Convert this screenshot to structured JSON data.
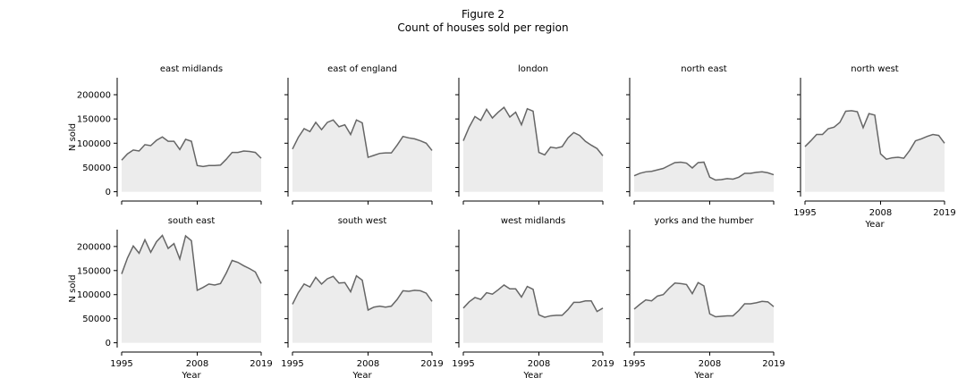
{
  "figure": {
    "title": "Figure 2",
    "subtitle": "Count of houses sold per region"
  },
  "chart_data": {
    "type": "area",
    "xlabel": "Year",
    "ylabel": "N sold",
    "xlim": [
      1995,
      2019
    ],
    "ylim": [
      -10000,
      235000
    ],
    "xticks": [
      1995,
      2008,
      2019
    ],
    "yticks": [
      0,
      50000,
      100000,
      150000,
      200000
    ],
    "grid": false,
    "line_color": "#666666",
    "fill_color": "#ececec",
    "x": [
      1995,
      1996,
      1997,
      1998,
      1999,
      2000,
      2001,
      2002,
      2003,
      2004,
      2005,
      2006,
      2007,
      2008,
      2009,
      2010,
      2011,
      2012,
      2013,
      2014,
      2015,
      2016,
      2017,
      2018,
      2019
    ],
    "panels": [
      {
        "name": "east midlands",
        "values": [
          65000,
          78000,
          86000,
          84000,
          97000,
          95000,
          106000,
          113000,
          104000,
          104000,
          87000,
          108000,
          104000,
          54000,
          52000,
          54000,
          54000,
          55000,
          67000,
          81000,
          81000,
          84000,
          83000,
          81000,
          69000
        ]
      },
      {
        "name": "east of england",
        "values": [
          88000,
          112000,
          130000,
          124000,
          143000,
          128000,
          143000,
          148000,
          134000,
          138000,
          118000,
          148000,
          142000,
          71000,
          75000,
          79000,
          80000,
          80000,
          96000,
          114000,
          111000,
          109000,
          105000,
          100000,
          85000
        ]
      },
      {
        "name": "london",
        "values": [
          105000,
          133000,
          155000,
          147000,
          170000,
          152000,
          164000,
          174000,
          154000,
          164000,
          138000,
          171000,
          166000,
          81000,
          76000,
          92000,
          90000,
          93000,
          111000,
          122000,
          116000,
          104000,
          96000,
          89000,
          74000
        ]
      },
      {
        "name": "north east",
        "values": [
          33000,
          38000,
          41000,
          42000,
          45000,
          48000,
          54000,
          60000,
          61000,
          59000,
          49000,
          60000,
          61000,
          30000,
          24000,
          25000,
          27000,
          26000,
          30000,
          38000,
          38000,
          40000,
          41000,
          39000,
          35000
        ]
      },
      {
        "name": "north west",
        "values": [
          93000,
          105000,
          118000,
          118000,
          130000,
          133000,
          143000,
          166000,
          167000,
          165000,
          132000,
          161000,
          158000,
          78000,
          67000,
          70000,
          71000,
          69000,
          85000,
          105000,
          109000,
          114000,
          118000,
          116000,
          100000
        ]
      },
      {
        "name": "south east",
        "values": [
          143000,
          176000,
          201000,
          186000,
          214000,
          188000,
          210000,
          223000,
          196000,
          206000,
          174000,
          222000,
          212000,
          109000,
          115000,
          122000,
          120000,
          123000,
          145000,
          171000,
          167000,
          160000,
          154000,
          147000,
          123000
        ]
      },
      {
        "name": "south west",
        "values": [
          80000,
          104000,
          122000,
          116000,
          136000,
          122000,
          133000,
          138000,
          124000,
          125000,
          106000,
          139000,
          130000,
          68000,
          74000,
          76000,
          74000,
          76000,
          90000,
          108000,
          107000,
          109000,
          108000,
          103000,
          86000
        ]
      },
      {
        "name": "west midlands",
        "values": [
          72000,
          85000,
          94000,
          90000,
          104000,
          101000,
          110000,
          120000,
          112000,
          112000,
          95000,
          117000,
          111000,
          58000,
          53000,
          56000,
          57000,
          57000,
          69000,
          84000,
          84000,
          87000,
          87000,
          65000,
          72000
        ]
      },
      {
        "name": "yorks and the humber",
        "values": [
          70000,
          80000,
          89000,
          87000,
          97000,
          100000,
          113000,
          124000,
          123000,
          121000,
          102000,
          125000,
          118000,
          60000,
          54000,
          55000,
          56000,
          56000,
          67000,
          81000,
          81000,
          83000,
          86000,
          85000,
          75000
        ]
      }
    ]
  }
}
